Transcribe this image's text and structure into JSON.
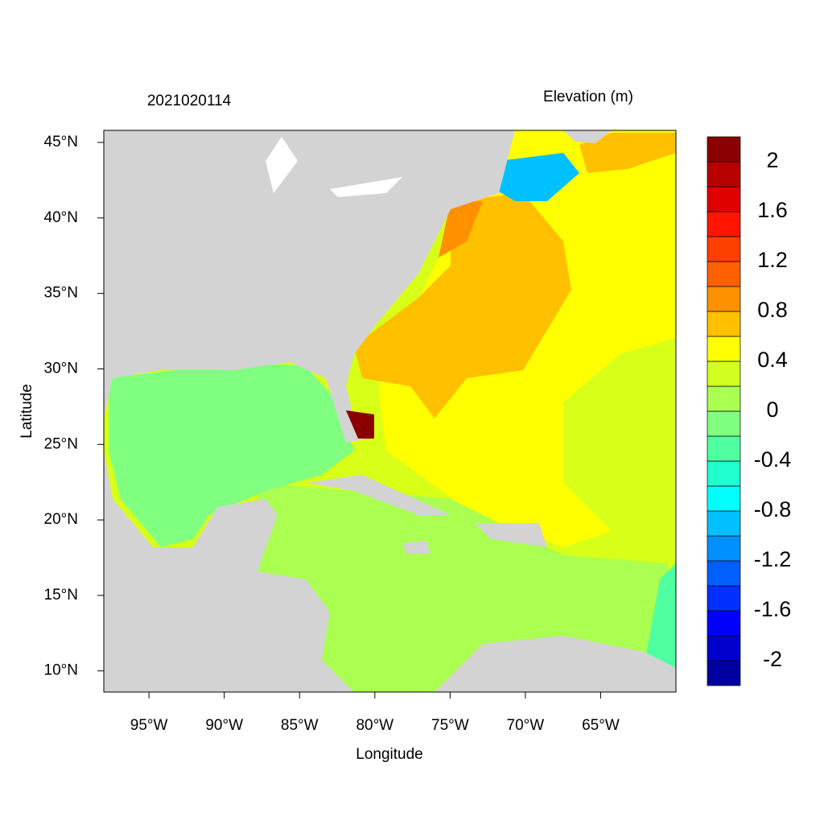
{
  "map": {
    "title_left": "2021020114",
    "title_right": "Elevation (m)",
    "x_label": "Longitude",
    "y_label": "Latitude",
    "xlim": [
      -98,
      -60
    ],
    "ylim": [
      8.6,
      45.8
    ],
    "xticks": [
      {
        "value": -95,
        "label": "95°W"
      },
      {
        "value": -90,
        "label": "90°W"
      },
      {
        "value": -85,
        "label": "85°W"
      },
      {
        "value": -80,
        "label": "80°W"
      },
      {
        "value": -75,
        "label": "75°W"
      },
      {
        "value": -70,
        "label": "70°W"
      },
      {
        "value": -65,
        "label": "65°W"
      }
    ],
    "yticks": [
      {
        "value": 45,
        "label": "45°N"
      },
      {
        "value": 40,
        "label": "40°N"
      },
      {
        "value": 35,
        "label": "35°N"
      },
      {
        "value": 30,
        "label": "30°N"
      },
      {
        "value": 25,
        "label": "25°N"
      },
      {
        "value": 20,
        "label": "20°N"
      },
      {
        "value": 15,
        "label": "15°N"
      },
      {
        "value": 10,
        "label": "10°N"
      }
    ],
    "colorbar": {
      "range": [
        -2.2,
        2.2
      ],
      "ticks": [
        -2,
        -1.6,
        -1.2,
        -0.8,
        -0.4,
        0,
        0.4,
        0.8,
        1.2,
        1.6,
        2
      ],
      "colors": [
        "#0000A0",
        "#0000CD",
        "#0000FF",
        "#0030FF",
        "#0060FF",
        "#0090FF",
        "#00C0FF",
        "#00FFFF",
        "#20FFD0",
        "#50FFA0",
        "#80FF80",
        "#AAFF50",
        "#D0FF20",
        "#FFFF00",
        "#FFC000",
        "#FF9000",
        "#FF6000",
        "#FF4000",
        "#FF1500",
        "#E00000",
        "#B80000",
        "#8B0000"
      ]
    }
  }
}
